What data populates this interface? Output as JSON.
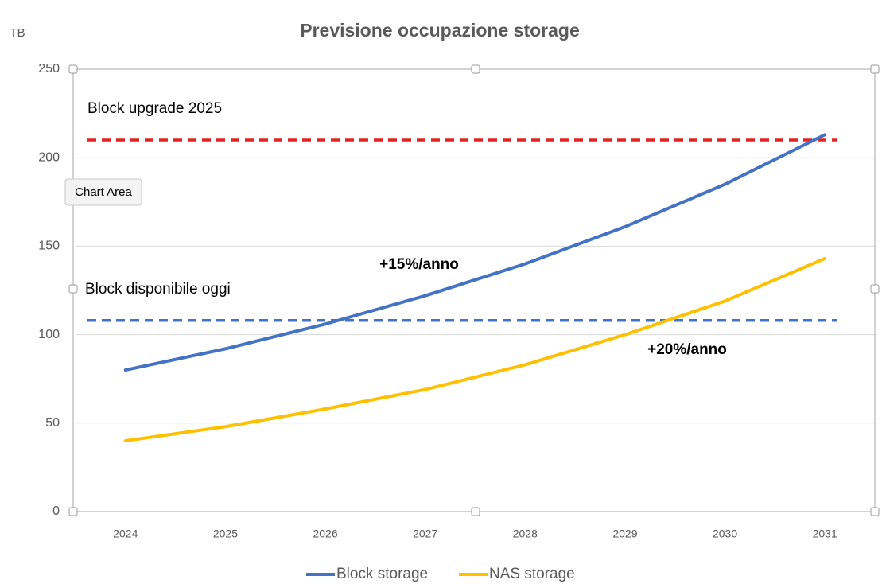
{
  "chart_data": {
    "type": "line",
    "title": "Previsione occupazione storage",
    "y_label": "TB",
    "tooltip": "Chart Area",
    "categories": [
      "2024",
      "2025",
      "2026",
      "2027",
      "2028",
      "2029",
      "2030",
      "2031"
    ],
    "series": [
      {
        "name": "Block storage",
        "color": "#4472c4",
        "values": [
          80,
          92,
          106,
          122,
          140,
          161,
          185,
          213
        ]
      },
      {
        "name": "NAS storage",
        "color": "#ffc000",
        "values": [
          40,
          48,
          58,
          69,
          83,
          100,
          119,
          143
        ]
      }
    ],
    "reference_lines": [
      {
        "label": "Block upgrade 2025",
        "value": 210,
        "color": "#e52222"
      },
      {
        "label": "Block disponibile oggi",
        "value": 108,
        "color": "#4472c4"
      }
    ],
    "annotations": [
      "+15%/anno",
      "+20%/anno"
    ],
    "ylim": [
      0,
      250
    ],
    "yticks": [
      0,
      50,
      100,
      150,
      200,
      250
    ],
    "grid": true,
    "legend": "bottom"
  }
}
